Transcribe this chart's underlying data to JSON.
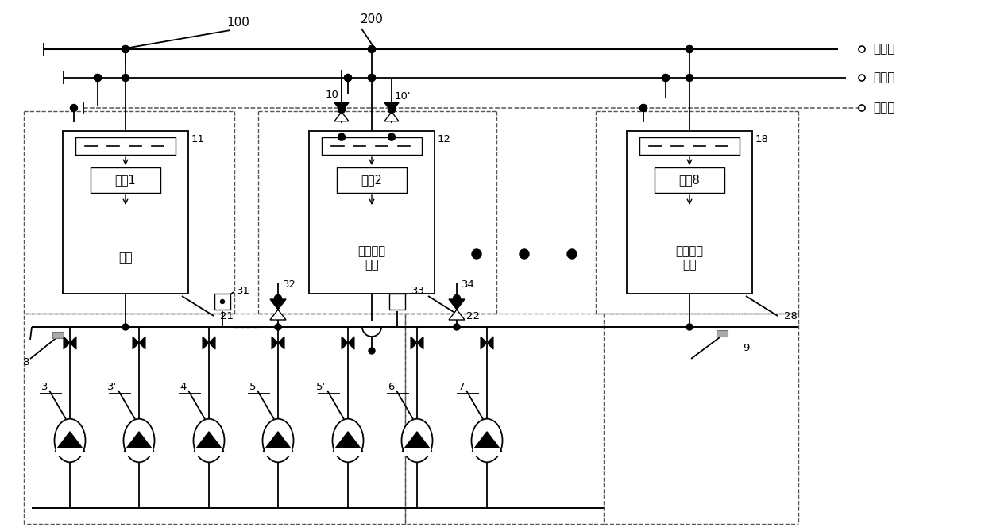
{
  "bg_color": "#ffffff",
  "lc": "#000000",
  "labels": {
    "addr1": "地址1",
    "addr2": "地址2",
    "addr8": "地址8",
    "main": "主机",
    "slave1": "值班功能\n从机",
    "slave2": "热水功能\n从机",
    "num11": "11",
    "num12": "12",
    "num18": "18",
    "num21": "21",
    "num22": "22",
    "num28": "28",
    "num100": "100",
    "num200": "200",
    "num10": "10",
    "num10p": "10'",
    "num31": "31",
    "num32": "32",
    "num33": "33",
    "num34": "34",
    "num3": "3",
    "num3p": "3'",
    "num4": "4",
    "num5": "5",
    "num5p": "5'",
    "num6": "6",
    "num7": "7",
    "num8": "8",
    "num9": "9",
    "goto_end": "去末端",
    "goto_pipe": "去埋管",
    "goto_tank": "去水箱"
  }
}
